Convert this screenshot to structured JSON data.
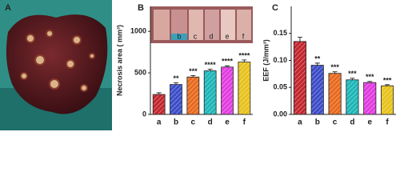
{
  "panel_labels": [
    "A",
    "B",
    "C"
  ],
  "inset_labels": [
    "b",
    "c",
    "d",
    "e",
    "f"
  ],
  "chart_data": [
    {
      "type": "bar",
      "y_label": "Necrosis area ( mm³)",
      "categories": [
        "a",
        "b",
        "c",
        "d",
        "e",
        "f"
      ],
      "values": [
        240,
        360,
        450,
        525,
        570,
        630
      ],
      "errors": [
        20,
        20,
        18,
        20,
        15,
        25
      ],
      "annotations": [
        "",
        "**",
        "***",
        "****",
        "****",
        "****"
      ],
      "colors": [
        "#c2262e",
        "#3b4cc8",
        "#e8681c",
        "#1cb6b8",
        "#e23ce0",
        "#e8c21c"
      ],
      "ylim": [
        0,
        1300
      ],
      "yticks": [
        0,
        500,
        1000
      ]
    },
    {
      "type": "bar",
      "y_label": "EEF (J/mm³)",
      "categories": [
        "a",
        "b",
        "c",
        "d",
        "e",
        "f"
      ],
      "values": [
        0.135,
        0.091,
        0.076,
        0.064,
        0.059,
        0.053
      ],
      "errors": [
        0.008,
        0.004,
        0.003,
        0.003,
        0.002,
        0.002
      ],
      "annotations": [
        "",
        "**",
        "***",
        "***",
        "***",
        "***"
      ],
      "colors": [
        "#c2262e",
        "#3b4cc8",
        "#e8681c",
        "#1cb6b8",
        "#e23ce0",
        "#e8c21c"
      ],
      "ylim": [
        0,
        0.2
      ],
      "yticks": [
        {
          "value": 0,
          "label": "0.00"
        },
        {
          "value": 0.05,
          "label": "0.05"
        },
        {
          "value": 0.1,
          "label": "0.10"
        },
        {
          "value": 0.15,
          "label": "0.15"
        }
      ]
    }
  ]
}
